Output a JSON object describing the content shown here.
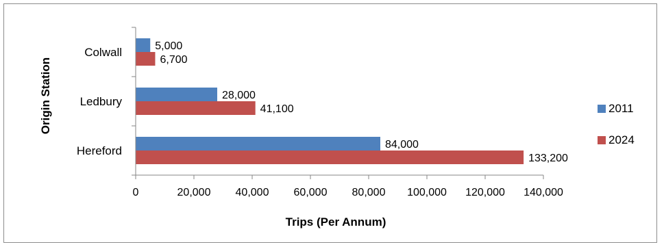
{
  "chart_data": {
    "type": "bar",
    "orientation": "horizontal",
    "categories": [
      "Colwall",
      "Ledbury",
      "Hereford"
    ],
    "series": [
      {
        "name": "2011",
        "values": [
          5000,
          28000,
          84000
        ],
        "labels": [
          "5,000",
          "28,000",
          "84,000"
        ],
        "color": "#4f81bd"
      },
      {
        "name": "2024",
        "values": [
          6700,
          41100,
          133200
        ],
        "labels": [
          "6,700",
          "41,100",
          "133,200"
        ],
        "color": "#c0504d"
      }
    ],
    "xlabel": "Trips (Per Annum)",
    "ylabel": "Origin Station",
    "xlim": [
      0,
      140000
    ],
    "xticks": [
      0,
      20000,
      40000,
      60000,
      80000,
      100000,
      120000,
      140000
    ],
    "xtick_labels": [
      "0",
      "20,000",
      "40,000",
      "60,000",
      "80,000",
      "100,000",
      "120,000",
      "140,000"
    ],
    "grid": false,
    "legend": "right"
  }
}
